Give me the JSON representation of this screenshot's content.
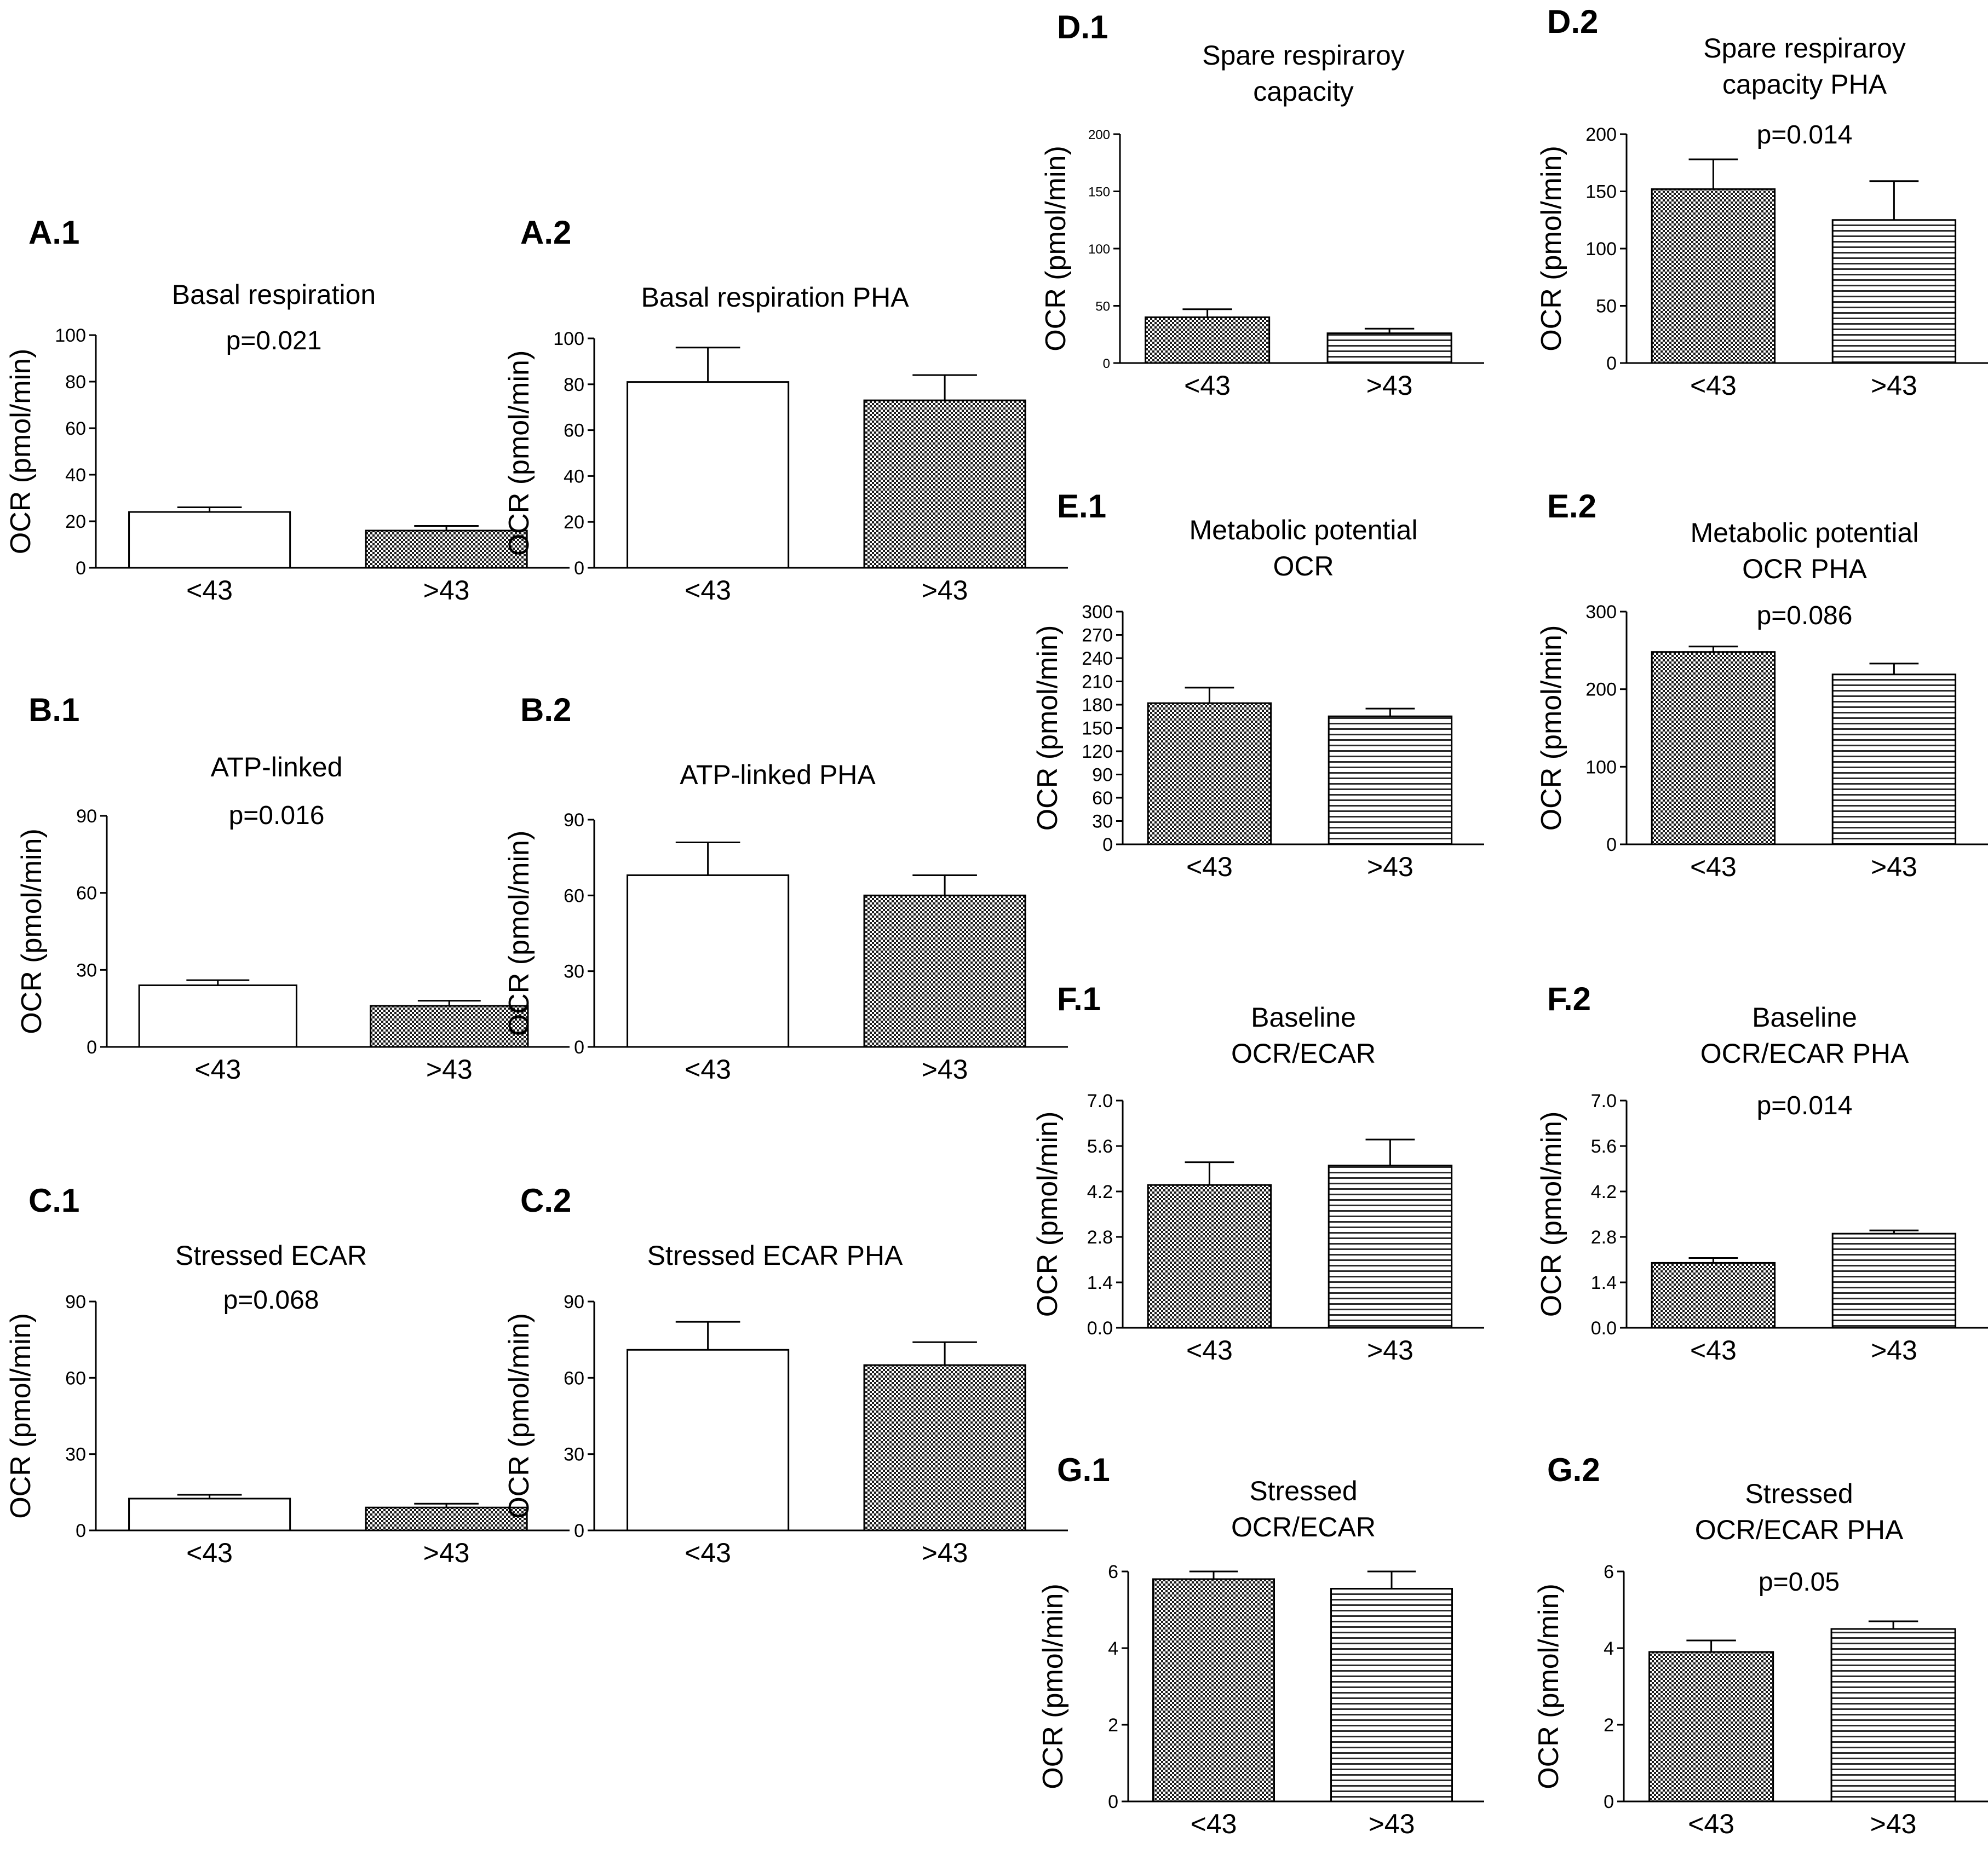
{
  "chart_data": [
    {
      "id": "A.1",
      "type": "bar",
      "panel_label": "A.1",
      "title": [
        "Basal respiration"
      ],
      "pvalue": "p=0.021",
      "ylabel": "OCR (pmol/min)",
      "categories": [
        "<43",
        ">43"
      ],
      "values": [
        24,
        16
      ],
      "errors": [
        2,
        2
      ],
      "ylim": [
        0,
        100
      ],
      "yticks": [
        "0",
        "20",
        "40",
        "60",
        "80",
        "100"
      ],
      "fills": [
        "white",
        "dots"
      ]
    },
    {
      "id": "A.2",
      "type": "bar",
      "panel_label": "A.2",
      "title": [
        "Basal respiration PHA"
      ],
      "pvalue": "",
      "ylabel": "OCR (pmol/min)",
      "categories": [
        "<43",
        ">43"
      ],
      "values": [
        81,
        73
      ],
      "errors": [
        15,
        11
      ],
      "ylim": [
        0,
        100
      ],
      "yticks": [
        "0",
        "20",
        "40",
        "60",
        "80",
        "100"
      ],
      "fills": [
        "white",
        "dots"
      ]
    },
    {
      "id": "B.1",
      "type": "bar",
      "panel_label": "B.1",
      "title": [
        "ATP-linked"
      ],
      "pvalue": "p=0.016",
      "ylabel": "OCR (pmol/min)",
      "categories": [
        "<43",
        ">43"
      ],
      "values": [
        24,
        16
      ],
      "errors": [
        2,
        2
      ],
      "ylim": [
        0,
        90
      ],
      "yticks": [
        "0",
        "30",
        "60",
        "90"
      ],
      "fills": [
        "white",
        "dots"
      ]
    },
    {
      "id": "B.2",
      "type": "bar",
      "panel_label": "B.2",
      "title": [
        "ATP-linked PHA"
      ],
      "pvalue": "",
      "ylabel": "OCR (pmol/min)",
      "categories": [
        "<43",
        ">43"
      ],
      "values": [
        68,
        60
      ],
      "errors": [
        13,
        8
      ],
      "ylim": [
        0,
        90
      ],
      "yticks": [
        "0",
        "30",
        "60",
        "90"
      ],
      "fills": [
        "white",
        "dots"
      ]
    },
    {
      "id": "C.1",
      "type": "bar",
      "panel_label": "C.1",
      "title": [
        "Stressed ECAR"
      ],
      "pvalue": "p=0.068",
      "ylabel": "OCR (pmol/min)",
      "categories": [
        "<43",
        ">43"
      ],
      "values": [
        12.5,
        9
      ],
      "errors": [
        1.5,
        1.5
      ],
      "ylim": [
        0,
        90
      ],
      "yticks": [
        "0",
        "30",
        "60",
        "90"
      ],
      "fills": [
        "white",
        "dots"
      ]
    },
    {
      "id": "C.2",
      "type": "bar",
      "panel_label": "C.2",
      "title": [
        "Stressed ECAR PHA"
      ],
      "pvalue": "",
      "ylabel": "OCR (pmol/min)",
      "categories": [
        "<43",
        ">43"
      ],
      "values": [
        71,
        65
      ],
      "errors": [
        11,
        9
      ],
      "ylim": [
        0,
        90
      ],
      "yticks": [
        "0",
        "30",
        "60",
        "90"
      ],
      "fills": [
        "white",
        "dots"
      ]
    },
    {
      "id": "D.1",
      "type": "bar",
      "panel_label": "D.1",
      "title": [
        "Spare respiraroy",
        "capacity"
      ],
      "pvalue": "",
      "ylabel": "OCR (pmol/min)",
      "categories": [
        "<43",
        ">43"
      ],
      "values": [
        40,
        26
      ],
      "errors": [
        7,
        4
      ],
      "ylim": [
        0,
        200
      ],
      "yticks": [
        "0",
        "50",
        "100",
        "150",
        "200"
      ],
      "fills": [
        "dots",
        "hlines"
      ]
    },
    {
      "id": "D.2",
      "type": "bar",
      "panel_label": "D.2",
      "title": [
        "Spare respiraroy",
        "capacity PHA"
      ],
      "pvalue": "p=0.014",
      "ylabel": "OCR (pmol/min)",
      "categories": [
        "<43",
        ">43"
      ],
      "values": [
        152,
        125
      ],
      "errors": [
        26,
        34
      ],
      "ylim": [
        0,
        200
      ],
      "yticks": [
        "0",
        "50",
        "100",
        "150",
        "200"
      ],
      "fills": [
        "dots",
        "hlines"
      ]
    },
    {
      "id": "E.1",
      "type": "bar",
      "panel_label": "E.1",
      "title": [
        "Metabolic potential",
        "OCR"
      ],
      "pvalue": "",
      "ylabel": "OCR (pmol/min)",
      "categories": [
        "<43",
        ">43"
      ],
      "values": [
        182,
        165
      ],
      "errors": [
        20,
        10
      ],
      "ylim": [
        0,
        300
      ],
      "yticks": [
        "0",
        "30",
        "60",
        "90",
        "120",
        "150",
        "180",
        "210",
        "240",
        "270",
        "300"
      ],
      "fills": [
        "dots",
        "hlines"
      ]
    },
    {
      "id": "E.2",
      "type": "bar",
      "panel_label": "E.2",
      "title": [
        "Metabolic potential",
        "OCR PHA"
      ],
      "pvalue": "p=0.086",
      "ylabel": "OCR (pmol/min)",
      "categories": [
        "<43",
        ">43"
      ],
      "values": [
        248,
        219
      ],
      "errors": [
        7,
        14
      ],
      "ylim": [
        0,
        300
      ],
      "yticks": [
        "0",
        "100",
        "200",
        "300"
      ],
      "fills": [
        "dots",
        "hlines"
      ]
    },
    {
      "id": "F.1",
      "type": "bar",
      "panel_label": "F.1",
      "title": [
        "Baseline",
        "OCR/ECAR"
      ],
      "pvalue": "",
      "ylabel": "OCR (pmol/min)",
      "categories": [
        "<43",
        ">43"
      ],
      "values": [
        4.4,
        5.0
      ],
      "errors": [
        0.7,
        0.8
      ],
      "ylim": [
        0,
        7
      ],
      "yticks": [
        "0.0",
        "1.4",
        "2.8",
        "4.2",
        "5.6",
        "7.0"
      ],
      "fills": [
        "dots",
        "hlines"
      ]
    },
    {
      "id": "F.2",
      "type": "bar",
      "panel_label": "F.2",
      "title": [
        "Baseline",
        "OCR/ECAR PHA"
      ],
      "pvalue": "p=0.014",
      "ylabel": "OCR (pmol/min)",
      "categories": [
        "<43",
        ">43"
      ],
      "values": [
        2.0,
        2.9
      ],
      "errors": [
        0.15,
        0.1
      ],
      "ylim": [
        0,
        7
      ],
      "yticks": [
        "0.0",
        "1.4",
        "2.8",
        "4.2",
        "5.6",
        "7.0"
      ],
      "fills": [
        "dots",
        "hlines"
      ]
    },
    {
      "id": "G.1",
      "type": "bar",
      "panel_label": "G.1",
      "title": [
        "Stressed",
        "OCR/ECAR"
      ],
      "pvalue": "",
      "ylabel": "OCR (pmol/min)",
      "categories": [
        "<43",
        ">43"
      ],
      "values": [
        5.8,
        5.55
      ],
      "errors": [
        0.2,
        0.45
      ],
      "ylim": [
        0,
        6
      ],
      "yticks": [
        "0",
        "2",
        "4",
        "6"
      ],
      "fills": [
        "dots",
        "hlines"
      ]
    },
    {
      "id": "G.2",
      "type": "bar",
      "panel_label": "G.2",
      "title": [
        "Stressed",
        "OCR/ECAR PHA"
      ],
      "pvalue": "p=0.05",
      "ylabel": "OCR (pmol/min)",
      "categories": [
        "<43",
        ">43"
      ],
      "values": [
        3.9,
        4.5
      ],
      "errors": [
        0.3,
        0.2
      ],
      "ylim": [
        0,
        6
      ],
      "yticks": [
        "0",
        "2",
        "4",
        "6"
      ],
      "fills": [
        "dots",
        "hlines"
      ]
    }
  ]
}
